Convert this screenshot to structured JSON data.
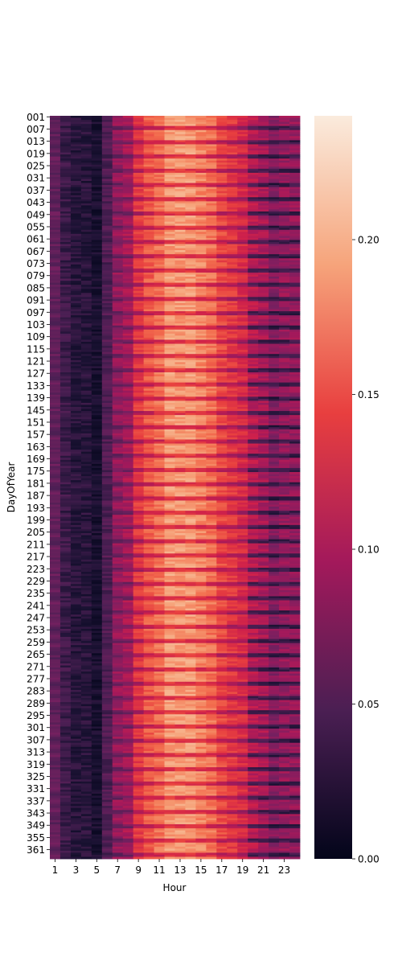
{
  "chart_data": {
    "type": "heatmap",
    "xlabel": "Hour",
    "ylabel": "DayOfYear",
    "x_tick_labels": [
      "1",
      "3",
      "5",
      "7",
      "9",
      "11",
      "13",
      "15",
      "17",
      "19",
      "21",
      "23"
    ],
    "y_tick_labels": [
      "001",
      "007",
      "013",
      "019",
      "025",
      "031",
      "037",
      "043",
      "049",
      "055",
      "061",
      "067",
      "073",
      "079",
      "085",
      "091",
      "097",
      "103",
      "109",
      "115",
      "121",
      "127",
      "133",
      "139",
      "145",
      "151",
      "157",
      "163",
      "169",
      "175",
      "181",
      "187",
      "193",
      "199",
      "205",
      "211",
      "217",
      "223",
      "229",
      "235",
      "241",
      "247",
      "253",
      "259",
      "265",
      "271",
      "277",
      "283",
      "289",
      "295",
      "301",
      "307",
      "313",
      "319",
      "325",
      "331",
      "337",
      "343",
      "349",
      "355",
      "361"
    ],
    "hours": [
      1,
      24
    ],
    "days": [
      1,
      365
    ],
    "colorbar": {
      "ticks": [
        "0.00",
        "0.05",
        "0.10",
        "0.15",
        "0.20"
      ],
      "range": [
        0,
        0.24
      ],
      "colormap": "rocket"
    },
    "typical_hourly_profile": [
      0.06,
      0.04,
      0.03,
      0.03,
      0.02,
      0.05,
      0.09,
      0.1,
      0.14,
      0.16,
      0.17,
      0.19,
      0.19,
      0.19,
      0.18,
      0.17,
      0.15,
      0.14,
      0.13,
      0.11,
      0.1,
      0.08,
      0.09,
      0.09
    ],
    "notes_from_image": {
      "daytime_peak_hours": [
        11,
        16
      ],
      "max_value_near": 0.24
    }
  }
}
